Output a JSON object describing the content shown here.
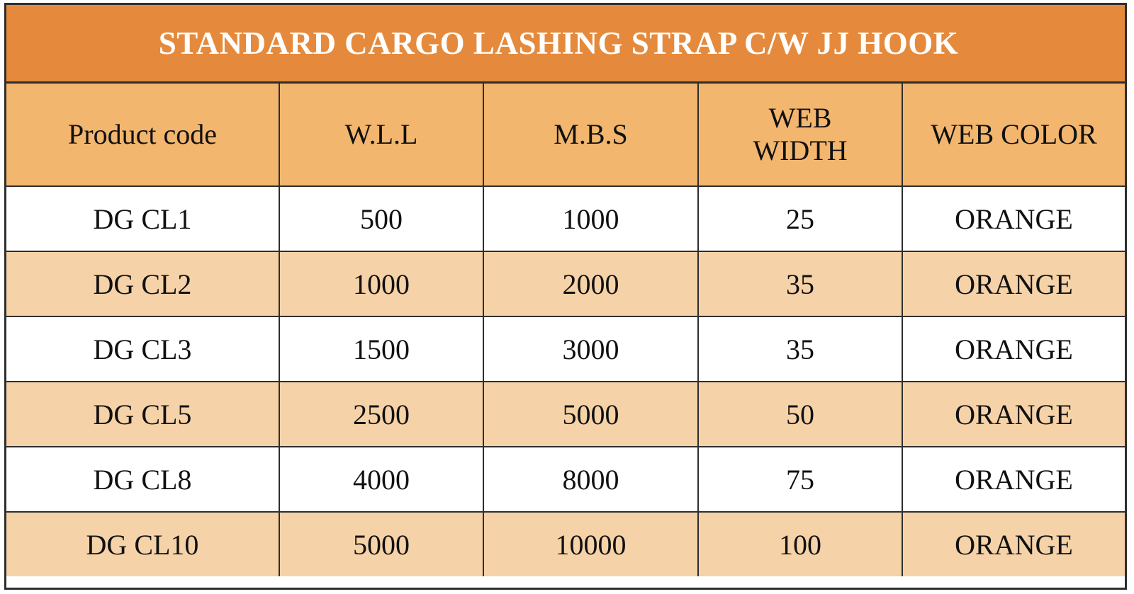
{
  "title": "STANDARD CARGO LASHING STRAP C/W JJ HOOK",
  "headers": [
    "Product code",
    "W.L.L",
    "M.B.S",
    "WEB\nWIDTH",
    "WEB COLOR"
  ],
  "rows": [
    [
      "DG CL1",
      "500",
      "1000",
      "25",
      "ORANGE"
    ],
    [
      "DG CL2",
      "1000",
      "2000",
      "35",
      "ORANGE"
    ],
    [
      "DG CL3",
      "1500",
      "3000",
      "35",
      "ORANGE"
    ],
    [
      "DG CL5",
      "2500",
      "5000",
      "50",
      "ORANGE"
    ],
    [
      "DG CL8",
      "4000",
      "8000",
      "75",
      "ORANGE"
    ],
    [
      "DG CL10",
      "5000",
      "10000",
      "100",
      "ORANGE"
    ]
  ],
  "colors": {
    "title_background": "#e58a3c",
    "header_background": "#f2b66e",
    "row_alt_background": "#f5d2a8",
    "row_background": "#ffffff"
  }
}
